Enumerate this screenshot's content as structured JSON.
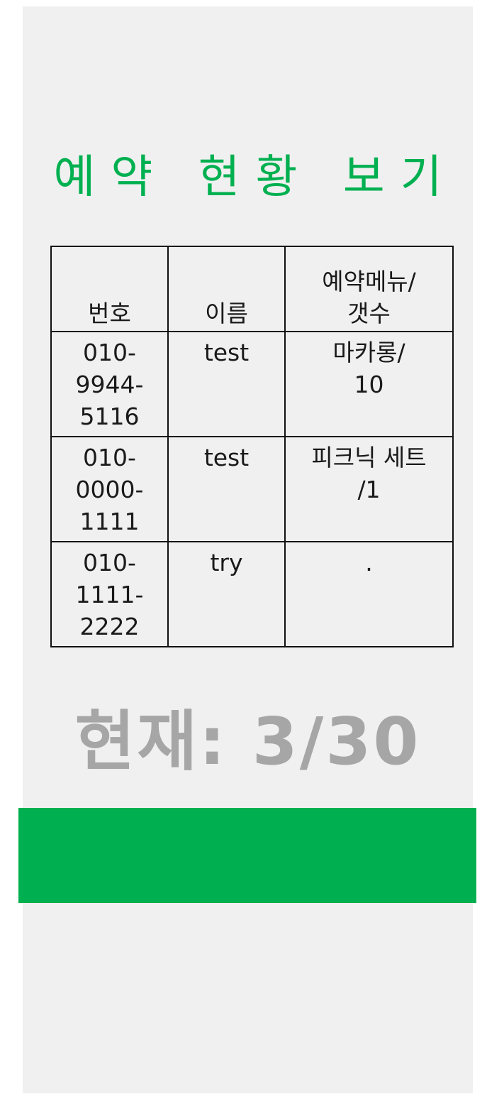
{
  "title": "예약 현황 보기",
  "table": {
    "headers": [
      "번호",
      "이름",
      "예약메뉴/\n갯수"
    ],
    "rows": [
      {
        "phone": [
          "010-",
          "9944-",
          "5116"
        ],
        "name": "test",
        "menu": [
          "마카롱/",
          "10"
        ]
      },
      {
        "phone": [
          "010-",
          "0000-",
          "1111"
        ],
        "name": "test",
        "menu": [
          "피크닉 세트",
          "/1"
        ]
      },
      {
        "phone": [
          "010-",
          "1111-",
          "2222"
        ],
        "name": "try",
        "menu": [
          "."
        ]
      }
    ]
  },
  "count": {
    "label": "현재: 3/30"
  },
  "colors": {
    "accent": "#00b050",
    "panel": "#f0f0f0",
    "count_text": "#a6a6a6"
  }
}
